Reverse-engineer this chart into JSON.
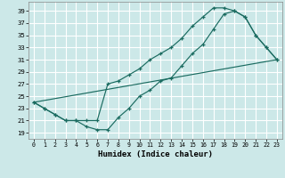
{
  "bg_color": "#cce8e8",
  "grid_color": "#b8d8d8",
  "line_color": "#1a6b60",
  "xlabel": "Humidex (Indice chaleur)",
  "xlim": [
    -0.5,
    23.5
  ],
  "ylim": [
    18.0,
    40.5
  ],
  "xticks": [
    0,
    1,
    2,
    3,
    4,
    5,
    6,
    7,
    8,
    9,
    10,
    11,
    12,
    13,
    14,
    15,
    16,
    17,
    18,
    19,
    20,
    21,
    22,
    23
  ],
  "yticks": [
    19,
    21,
    23,
    25,
    27,
    29,
    31,
    33,
    35,
    37,
    39
  ],
  "curve1_x": [
    0,
    1,
    2,
    3,
    4,
    5,
    6,
    7,
    8,
    9,
    10,
    11,
    12,
    13,
    14,
    15,
    16,
    17,
    18,
    19,
    20,
    21,
    22,
    23
  ],
  "curve1_y": [
    24,
    23,
    22,
    21,
    21,
    20,
    19.5,
    19.5,
    21.5,
    23,
    25,
    26,
    27.5,
    28,
    30,
    32,
    33.5,
    36,
    38.5,
    39,
    38,
    35,
    33,
    31
  ],
  "curve2_x": [
    0,
    1,
    2,
    3,
    4,
    5,
    6,
    7,
    8,
    9,
    10,
    11,
    12,
    13,
    14,
    15,
    16,
    17,
    18,
    19,
    20,
    21,
    22,
    23
  ],
  "curve2_y": [
    24,
    23,
    22,
    21,
    21,
    21,
    21,
    27,
    27.5,
    28.5,
    29.5,
    31,
    32,
    33,
    34.5,
    36.5,
    38,
    39.5,
    39.5,
    39,
    38,
    35,
    33,
    31
  ],
  "line3_x": [
    0,
    23
  ],
  "line3_y": [
    24,
    31
  ]
}
